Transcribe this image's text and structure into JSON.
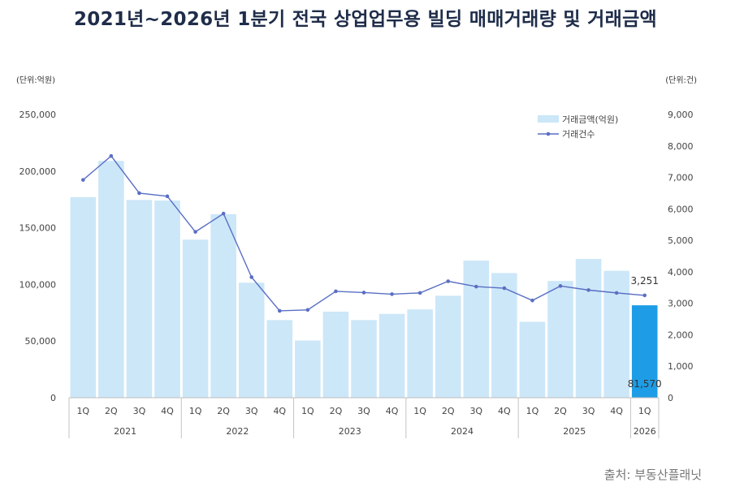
{
  "chart_data": {
    "type": "bar",
    "title": "2021년~2026년 1분기 전국 상업업무용 빌딩 매매거래량 및 거래금액",
    "y_left_unit": "(단위:억원)",
    "y_right_unit": "(단위:건)",
    "ylim_left": [
      0,
      250000
    ],
    "ylim_right": [
      0,
      9000
    ],
    "y_left_ticks": [
      "0",
      "50,000",
      "100,000",
      "150,000",
      "200,000",
      "250,000"
    ],
    "y_right_ticks": [
      "0",
      "1,000",
      "2,000",
      "3,000",
      "4,000",
      "5,000",
      "6,000",
      "7,000",
      "8,000",
      "9,000"
    ],
    "categories": [
      "1Q",
      "2Q",
      "3Q",
      "4Q",
      "1Q",
      "2Q",
      "3Q",
      "4Q",
      "1Q",
      "2Q",
      "3Q",
      "4Q",
      "1Q",
      "2Q",
      "3Q",
      "4Q",
      "1Q",
      "2Q",
      "3Q",
      "4Q",
      "1Q"
    ],
    "years": [
      {
        "label": "2021",
        "count": 4
      },
      {
        "label": "2022",
        "count": 4
      },
      {
        "label": "2023",
        "count": 4
      },
      {
        "label": "2024",
        "count": 4
      },
      {
        "label": "2025",
        "count": 4
      },
      {
        "label": "2026",
        "count": 1
      }
    ],
    "series": [
      {
        "name": "거래금액(억원)",
        "type": "bar",
        "axis": "left",
        "values": [
          177000,
          209000,
          174500,
          174000,
          139500,
          162000,
          101500,
          68500,
          50500,
          76000,
          68500,
          74000,
          78000,
          90000,
          121000,
          110000,
          67000,
          103000,
          122500,
          112000,
          81570
        ]
      },
      {
        "name": "거래건수",
        "type": "line",
        "axis": "right",
        "values": [
          6920,
          7680,
          6500,
          6400,
          5270,
          5850,
          3830,
          2760,
          2790,
          3380,
          3340,
          3290,
          3330,
          3700,
          3530,
          3480,
          3090,
          3550,
          3420,
          3330,
          3251
        ]
      }
    ],
    "labels": {
      "last_bar": "81,570",
      "last_point": "3,251"
    },
    "colors": {
      "bar": "#cce7f8",
      "bar_highlight": "#1e9de6",
      "line": "#5a6fc4"
    },
    "legend_position": "top-right",
    "grid": false
  },
  "source": "출처: 부동산플래닛"
}
